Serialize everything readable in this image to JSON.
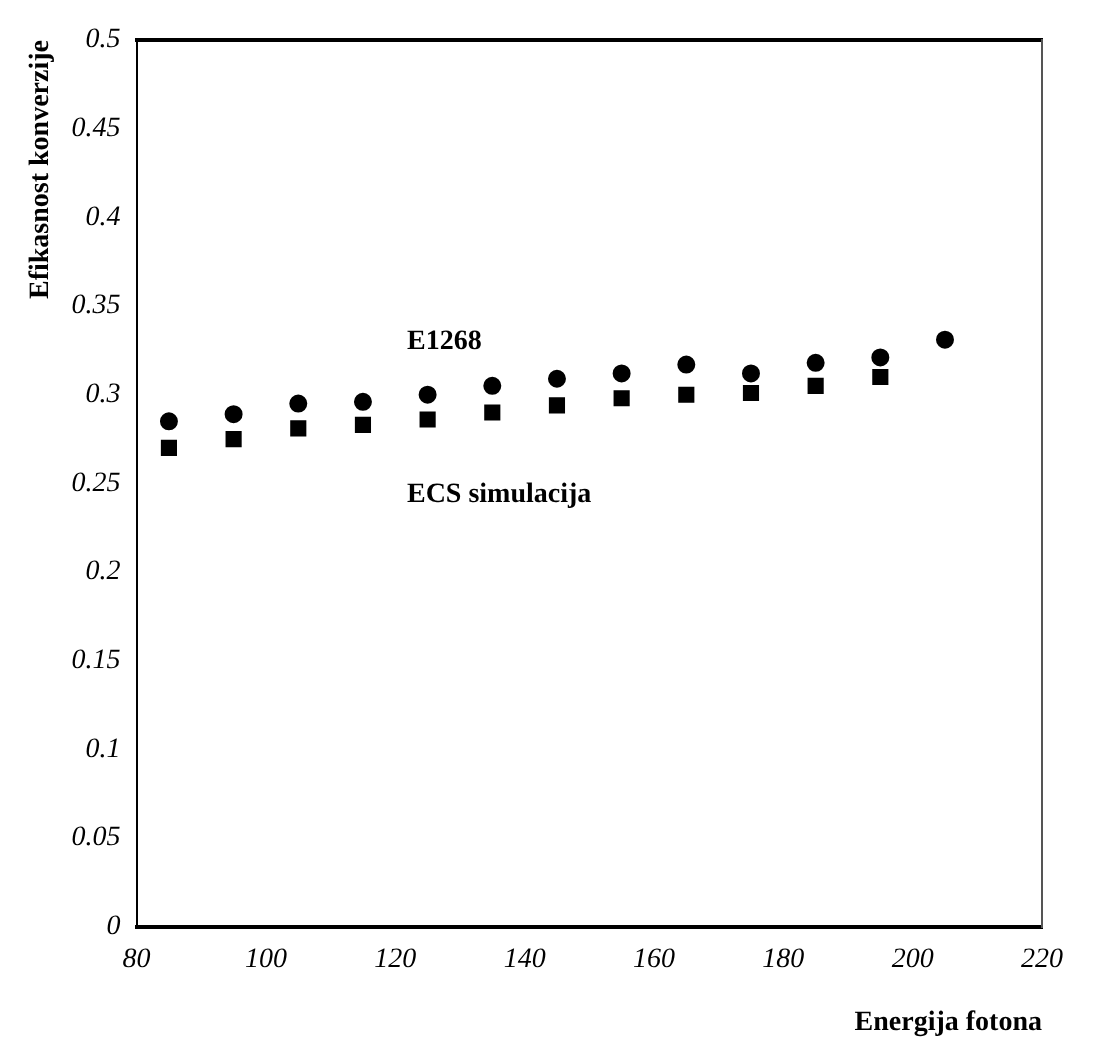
{
  "chart_data": {
    "type": "scatter",
    "xlabel": "Energija fotona",
    "ylabel": "Efikasnost konverzije",
    "xlim": [
      80,
      220
    ],
    "xticks": [
      80,
      100,
      120,
      140,
      160,
      180,
      200,
      220
    ],
    "ylim": [
      0,
      0.5
    ],
    "yticks": [
      0,
      0.05,
      0.1,
      0.15,
      0.2,
      0.25,
      0.3,
      0.35,
      0.4,
      0.45,
      0.5
    ],
    "grid": false,
    "legend": false,
    "series": [
      {
        "name": "E1268",
        "color": "#000000",
        "marker": "circle",
        "x": [
          85,
          95,
          105,
          115,
          125,
          135,
          145,
          155,
          165,
          175,
          185,
          195,
          205
        ],
        "values": [
          0.285,
          0.289,
          0.295,
          0.296,
          0.3,
          0.305,
          0.309,
          0.312,
          0.317,
          0.312,
          0.318,
          0.321,
          0.331
        ]
      },
      {
        "name": "ECS simulacija",
        "color": "#000000",
        "marker": "square",
        "x": [
          85,
          95,
          105,
          115,
          125,
          135,
          145,
          155,
          165,
          175,
          185,
          195
        ],
        "values": [
          0.27,
          0.275,
          0.281,
          0.283,
          0.286,
          0.29,
          0.294,
          0.298,
          0.3,
          0.301,
          0.305,
          0.31
        ]
      }
    ]
  }
}
